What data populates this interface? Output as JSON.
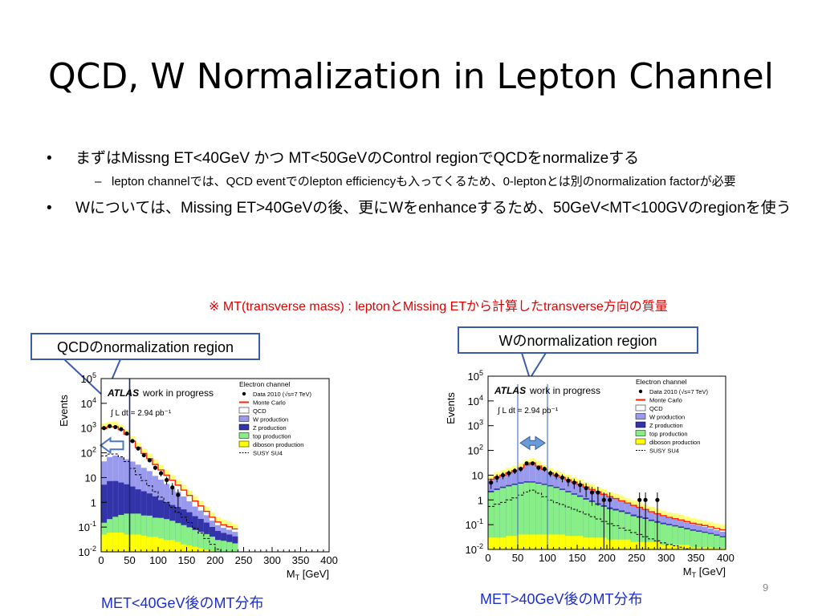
{
  "slide": {
    "title": "QCD, W Normalization in Lepton Channel",
    "bullet1": "まずはMissng ET<40GeV かつ MT<50GeVのControl regionでQCDをnormalizeする",
    "bullet1_sub": "lepton channelでは、QCD eventでのlepton efficiencyも入ってくるため、0-leptonとは別のnormalization factorが必要",
    "bullet2": "Wについては、Missing ET>40GeVの後、更にWをenhanceするため、50GeV<MT<100GVのregionを使う",
    "note": "※ MT(transverse mass) : leptonとMissing ETから計算したtransverse方向の質量",
    "callout_left": "QCDのnormalization region",
    "callout_right": "Wのnormalization region",
    "caption_left": "MET<40GeV後のMT分布",
    "caption_right": "MET>40GeV後のMT分布",
    "page_number": "9"
  },
  "colors": {
    "title": "#000000",
    "note": "#e00000",
    "caption": "#1d2fc8",
    "callout_border": "#3b5bab",
    "qcd": "#ffffff",
    "w": "#9999ee",
    "z": "#3333aa",
    "top": "#88ee88",
    "diboson": "#ffff00",
    "mc_line": "#ff2200",
    "band": "#ffff66",
    "cut_line": "#5577cc",
    "arrow": "#4a78c0"
  },
  "chart_data": [
    {
      "type": "area",
      "xlabel": "M_T [GeV]",
      "ylabel": "Events",
      "xlim": [
        0,
        400
      ],
      "ylim": [
        0.01,
        100000
      ],
      "log_y": true,
      "x_ticks": [
        "0",
        "50",
        "100",
        "150",
        "200",
        "250",
        "300",
        "350",
        "400"
      ],
      "y_ticks": [
        "10^-2",
        "10^-1",
        "1",
        "10",
        "10^2",
        "10^3",
        "10^4",
        "10^5"
      ],
      "atlas_label": "ATLAS",
      "status_label": "work in progress",
      "lumi_label": "∫ L dt = 2.94 pb^-1",
      "legend_title": "Electron channel",
      "legend_position": "top-right",
      "legend": [
        "Data 2010 (√s=7 TeV)",
        "Monte Carlo",
        "QCD",
        "W production",
        "Z production",
        "top production",
        "diboson production",
        "SUSY SU4"
      ],
      "cut_value": 50,
      "arrow_direction": "left",
      "bins": [
        5,
        15,
        25,
        35,
        45,
        55,
        65,
        75,
        85,
        95,
        105,
        115,
        125,
        135,
        145,
        155,
        165,
        175,
        185,
        195,
        205,
        215,
        225,
        235
      ],
      "stack": [
        {
          "name": "diboson production",
          "values": [
            0.05,
            0.06,
            0.06,
            0.06,
            0.05,
            0.05,
            0.05,
            0.045,
            0.04,
            0.04,
            0.035,
            0.03,
            0.03,
            0.025,
            0.02,
            0.018,
            0.016,
            0.014,
            0.012,
            0.011,
            0.01,
            0.01,
            0.01,
            0.01
          ]
        },
        {
          "name": "top production",
          "values": [
            0.1,
            0.15,
            0.2,
            0.25,
            0.3,
            0.3,
            0.3,
            0.25,
            0.25,
            0.2,
            0.2,
            0.18,
            0.15,
            0.12,
            0.1,
            0.08,
            0.06,
            0.05,
            0.04,
            0.03,
            0.02,
            0.018,
            0.015,
            0.012
          ]
        },
        {
          "name": "Z production",
          "values": [
            5,
            7,
            7,
            6,
            5,
            4,
            3,
            2.5,
            2,
            1.5,
            1,
            0.8,
            0.6,
            0.5,
            0.4,
            0.3,
            0.2,
            0.15,
            0.1,
            0.06,
            0.04,
            0.03,
            0.025,
            0.02
          ]
        },
        {
          "name": "W production",
          "values": [
            40,
            60,
            70,
            60,
            50,
            40,
            30,
            22,
            16,
            10,
            7,
            4.5,
            3,
            2,
            1.2,
            0.7,
            0.4,
            0.25,
            0.15,
            0.08,
            0.05,
            0.035,
            0.028,
            0.022
          ]
        },
        {
          "name": "QCD",
          "values": [
            900,
            1050,
            1050,
            800,
            500,
            250,
            130,
            70,
            40,
            22,
            12,
            7,
            4,
            2.3,
            1.4,
            0.8,
            0.45,
            0.25,
            0.13,
            0.07,
            0.04,
            0.03,
            0.025,
            0.02
          ]
        }
      ],
      "data": [
        {
          "x": 5,
          "y": 1000
        },
        {
          "x": 15,
          "y": 1200
        },
        {
          "x": 25,
          "y": 1100
        },
        {
          "x": 35,
          "y": 900
        },
        {
          "x": 45,
          "y": 600
        },
        {
          "x": 55,
          "y": 300
        },
        {
          "x": 65,
          "y": 150
        },
        {
          "x": 75,
          "y": 80
        },
        {
          "x": 85,
          "y": 50
        },
        {
          "x": 95,
          "y": 25
        },
        {
          "x": 105,
          "y": 15
        },
        {
          "x": 115,
          "y": 8
        },
        {
          "x": 125,
          "y": 4
        },
        {
          "x": 135,
          "y": 2
        }
      ]
    },
    {
      "type": "area",
      "xlabel": "M_T [GeV]",
      "ylabel": "Events",
      "xlim": [
        0,
        400
      ],
      "ylim": [
        0.01,
        100000
      ],
      "log_y": true,
      "x_ticks": [
        "0",
        "50",
        "100",
        "150",
        "200",
        "250",
        "300",
        "350",
        "400"
      ],
      "y_ticks": [
        "10^-2",
        "10^-1",
        "1",
        "10",
        "10^2",
        "10^3",
        "10^4",
        "10^5"
      ],
      "atlas_label": "ATLAS",
      "status_label": "work in progress",
      "lumi_label": "∫ L dt = 2.94 pb^-1",
      "legend_title": "Electron channel",
      "legend_position": "top-right",
      "legend": [
        "Data 2010 (√s=7 TeV)",
        "Monte Carlo",
        "QCD",
        "W production",
        "Z production",
        "top production",
        "diboson production",
        "SUSY SU4"
      ],
      "region_lines": [
        50,
        100
      ],
      "arrow_direction": "both",
      "bins": [
        5,
        15,
        25,
        35,
        45,
        55,
        65,
        75,
        85,
        95,
        105,
        115,
        125,
        135,
        145,
        155,
        165,
        175,
        185,
        195,
        205,
        215,
        225,
        235,
        245,
        255,
        265,
        275,
        285,
        295,
        305,
        315,
        325,
        335,
        345,
        355,
        365,
        375,
        385,
        395
      ],
      "stack": [
        {
          "name": "diboson production",
          "values": [
            0.03,
            0.03,
            0.03,
            0.035,
            0.035,
            0.04,
            0.04,
            0.04,
            0.04,
            0.04,
            0.04,
            0.04,
            0.04,
            0.035,
            0.035,
            0.035,
            0.03,
            0.03,
            0.03,
            0.03,
            0.025,
            0.025,
            0.025,
            0.025,
            0.02,
            0.02,
            0.02,
            0.02,
            0.02,
            0.015,
            0.015,
            0.015,
            0.015,
            0.015,
            0.012,
            0.012,
            0.012,
            0.012,
            0.011,
            0.011
          ]
        },
        {
          "name": "top production",
          "values": [
            2,
            2.5,
            3,
            3.5,
            4,
            4.5,
            5,
            5,
            4.5,
            4,
            3.5,
            3,
            2.5,
            2,
            1.6,
            1.3,
            1,
            0.8,
            0.6,
            0.5,
            0.4,
            0.35,
            0.3,
            0.25,
            0.2,
            0.17,
            0.15,
            0.12,
            0.1,
            0.09,
            0.08,
            0.07,
            0.06,
            0.05,
            0.045,
            0.04,
            0.035,
            0.03,
            0.025,
            0.02
          ]
        },
        {
          "name": "Z production",
          "values": [
            0.3,
            0.35,
            0.4,
            0.45,
            0.5,
            0.55,
            0.6,
            0.55,
            0.5,
            0.45,
            0.4,
            0.35,
            0.3,
            0.25,
            0.2,
            0.18,
            0.15,
            0.12,
            0.1,
            0.08,
            0.07,
            0.06,
            0.05,
            0.04,
            0.035,
            0.03,
            0.025,
            0.02,
            0.018,
            0.015,
            0.012,
            0.01,
            0.009,
            0.008,
            0.007,
            0.006,
            0.005,
            0.004,
            0.004,
            0.003
          ]
        },
        {
          "name": "W production",
          "values": [
            4,
            5,
            6,
            8,
            10,
            14,
            20,
            25,
            18,
            12,
            8,
            6,
            5,
            4,
            3.2,
            2.5,
            2,
            1.6,
            1.3,
            1,
            0.8,
            0.65,
            0.5,
            0.4,
            0.32,
            0.26,
            0.2,
            0.16,
            0.13,
            0.1,
            0.08,
            0.07,
            0.06,
            0.05,
            0.04,
            0.035,
            0.03,
            0.025,
            0.02,
            0.018
          ]
        },
        {
          "name": "QCD",
          "values": [
            0.5,
            0.5,
            0.5,
            0.5,
            0.5,
            0.5,
            0.5,
            0.5,
            0.4,
            0.4,
            0.3,
            0.3,
            0.3,
            0.2,
            0.2,
            0.2,
            0.15,
            0.1,
            0.1,
            0.08,
            0.06,
            0.05,
            0.04,
            0.03,
            0.025,
            0.02,
            0.015,
            0.012,
            0.01,
            0.01,
            0.01,
            0.01,
            0.01,
            0.01,
            0.01,
            0.01,
            0.01,
            0.01,
            0.01,
            0.01
          ]
        }
      ],
      "data": [
        {
          "x": 5,
          "y": 5
        },
        {
          "x": 15,
          "y": 8
        },
        {
          "x": 25,
          "y": 10
        },
        {
          "x": 35,
          "y": 12
        },
        {
          "x": 45,
          "y": 15
        },
        {
          "x": 55,
          "y": 18
        },
        {
          "x": 65,
          "y": 30
        },
        {
          "x": 75,
          "y": 30
        },
        {
          "x": 85,
          "y": 20
        },
        {
          "x": 95,
          "y": 18
        },
        {
          "x": 105,
          "y": 12
        },
        {
          "x": 115,
          "y": 10
        },
        {
          "x": 125,
          "y": 8
        },
        {
          "x": 135,
          "y": 6
        },
        {
          "x": 145,
          "y": 5
        },
        {
          "x": 155,
          "y": 4
        },
        {
          "x": 165,
          "y": 3
        },
        {
          "x": 175,
          "y": 2
        },
        {
          "x": 185,
          "y": 2
        },
        {
          "x": 195,
          "y": 1
        },
        {
          "x": 205,
          "y": 1
        },
        {
          "x": 255,
          "y": 1
        },
        {
          "x": 265,
          "y": 1
        },
        {
          "x": 285,
          "y": 1
        }
      ]
    }
  ]
}
